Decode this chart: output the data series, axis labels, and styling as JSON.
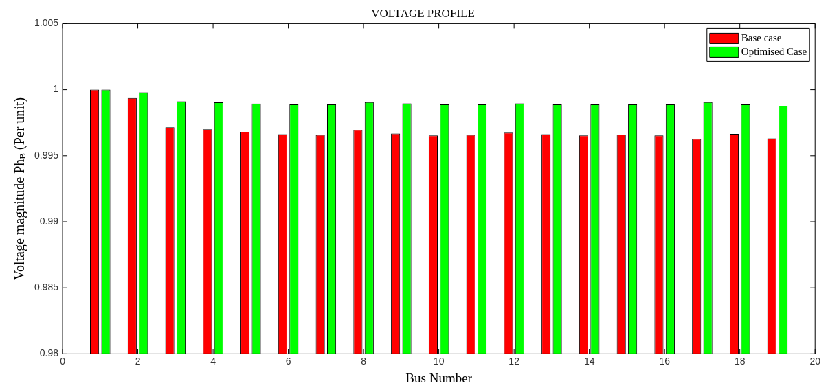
{
  "chart_data": {
    "type": "bar",
    "title": "VOLTAGE PROFILE",
    "xlabel": "Bus Number",
    "ylabel": "Voltage magnitude Ph$_{B}$ (Per unit)",
    "x": [
      1,
      2,
      3,
      4,
      5,
      6,
      7,
      8,
      9,
      10,
      11,
      12,
      13,
      14,
      15,
      16,
      17,
      18,
      19
    ],
    "series": [
      {
        "name": "Base case",
        "color": "#ff0000",
        "values": [
          1.0,
          0.99937,
          0.99716,
          0.99701,
          0.99681,
          0.99663,
          0.99658,
          0.99695,
          0.99668,
          0.99653,
          0.99658,
          0.99675,
          0.99663,
          0.99653,
          0.9966,
          0.99653,
          0.99627,
          0.99665,
          0.99632
        ]
      },
      {
        "name": "Optimised Case",
        "color": "#00ff00",
        "values": [
          1.0,
          0.9998,
          0.99912,
          0.99905,
          0.99895,
          0.99889,
          0.99889,
          0.99906,
          0.99896,
          0.99889,
          0.99889,
          0.99896,
          0.99889,
          0.99889,
          0.99889,
          0.99889,
          0.99906,
          0.99889,
          0.99878
        ]
      }
    ],
    "xlim": [
      0,
      20
    ],
    "xticks": [
      0,
      2,
      4,
      6,
      8,
      10,
      12,
      14,
      16,
      18,
      20
    ],
    "ylim": [
      0.98,
      1.005
    ],
    "yticks": [
      0.98,
      0.985,
      0.99,
      0.995,
      1,
      1.005
    ],
    "grid": false,
    "legend": "top right"
  }
}
